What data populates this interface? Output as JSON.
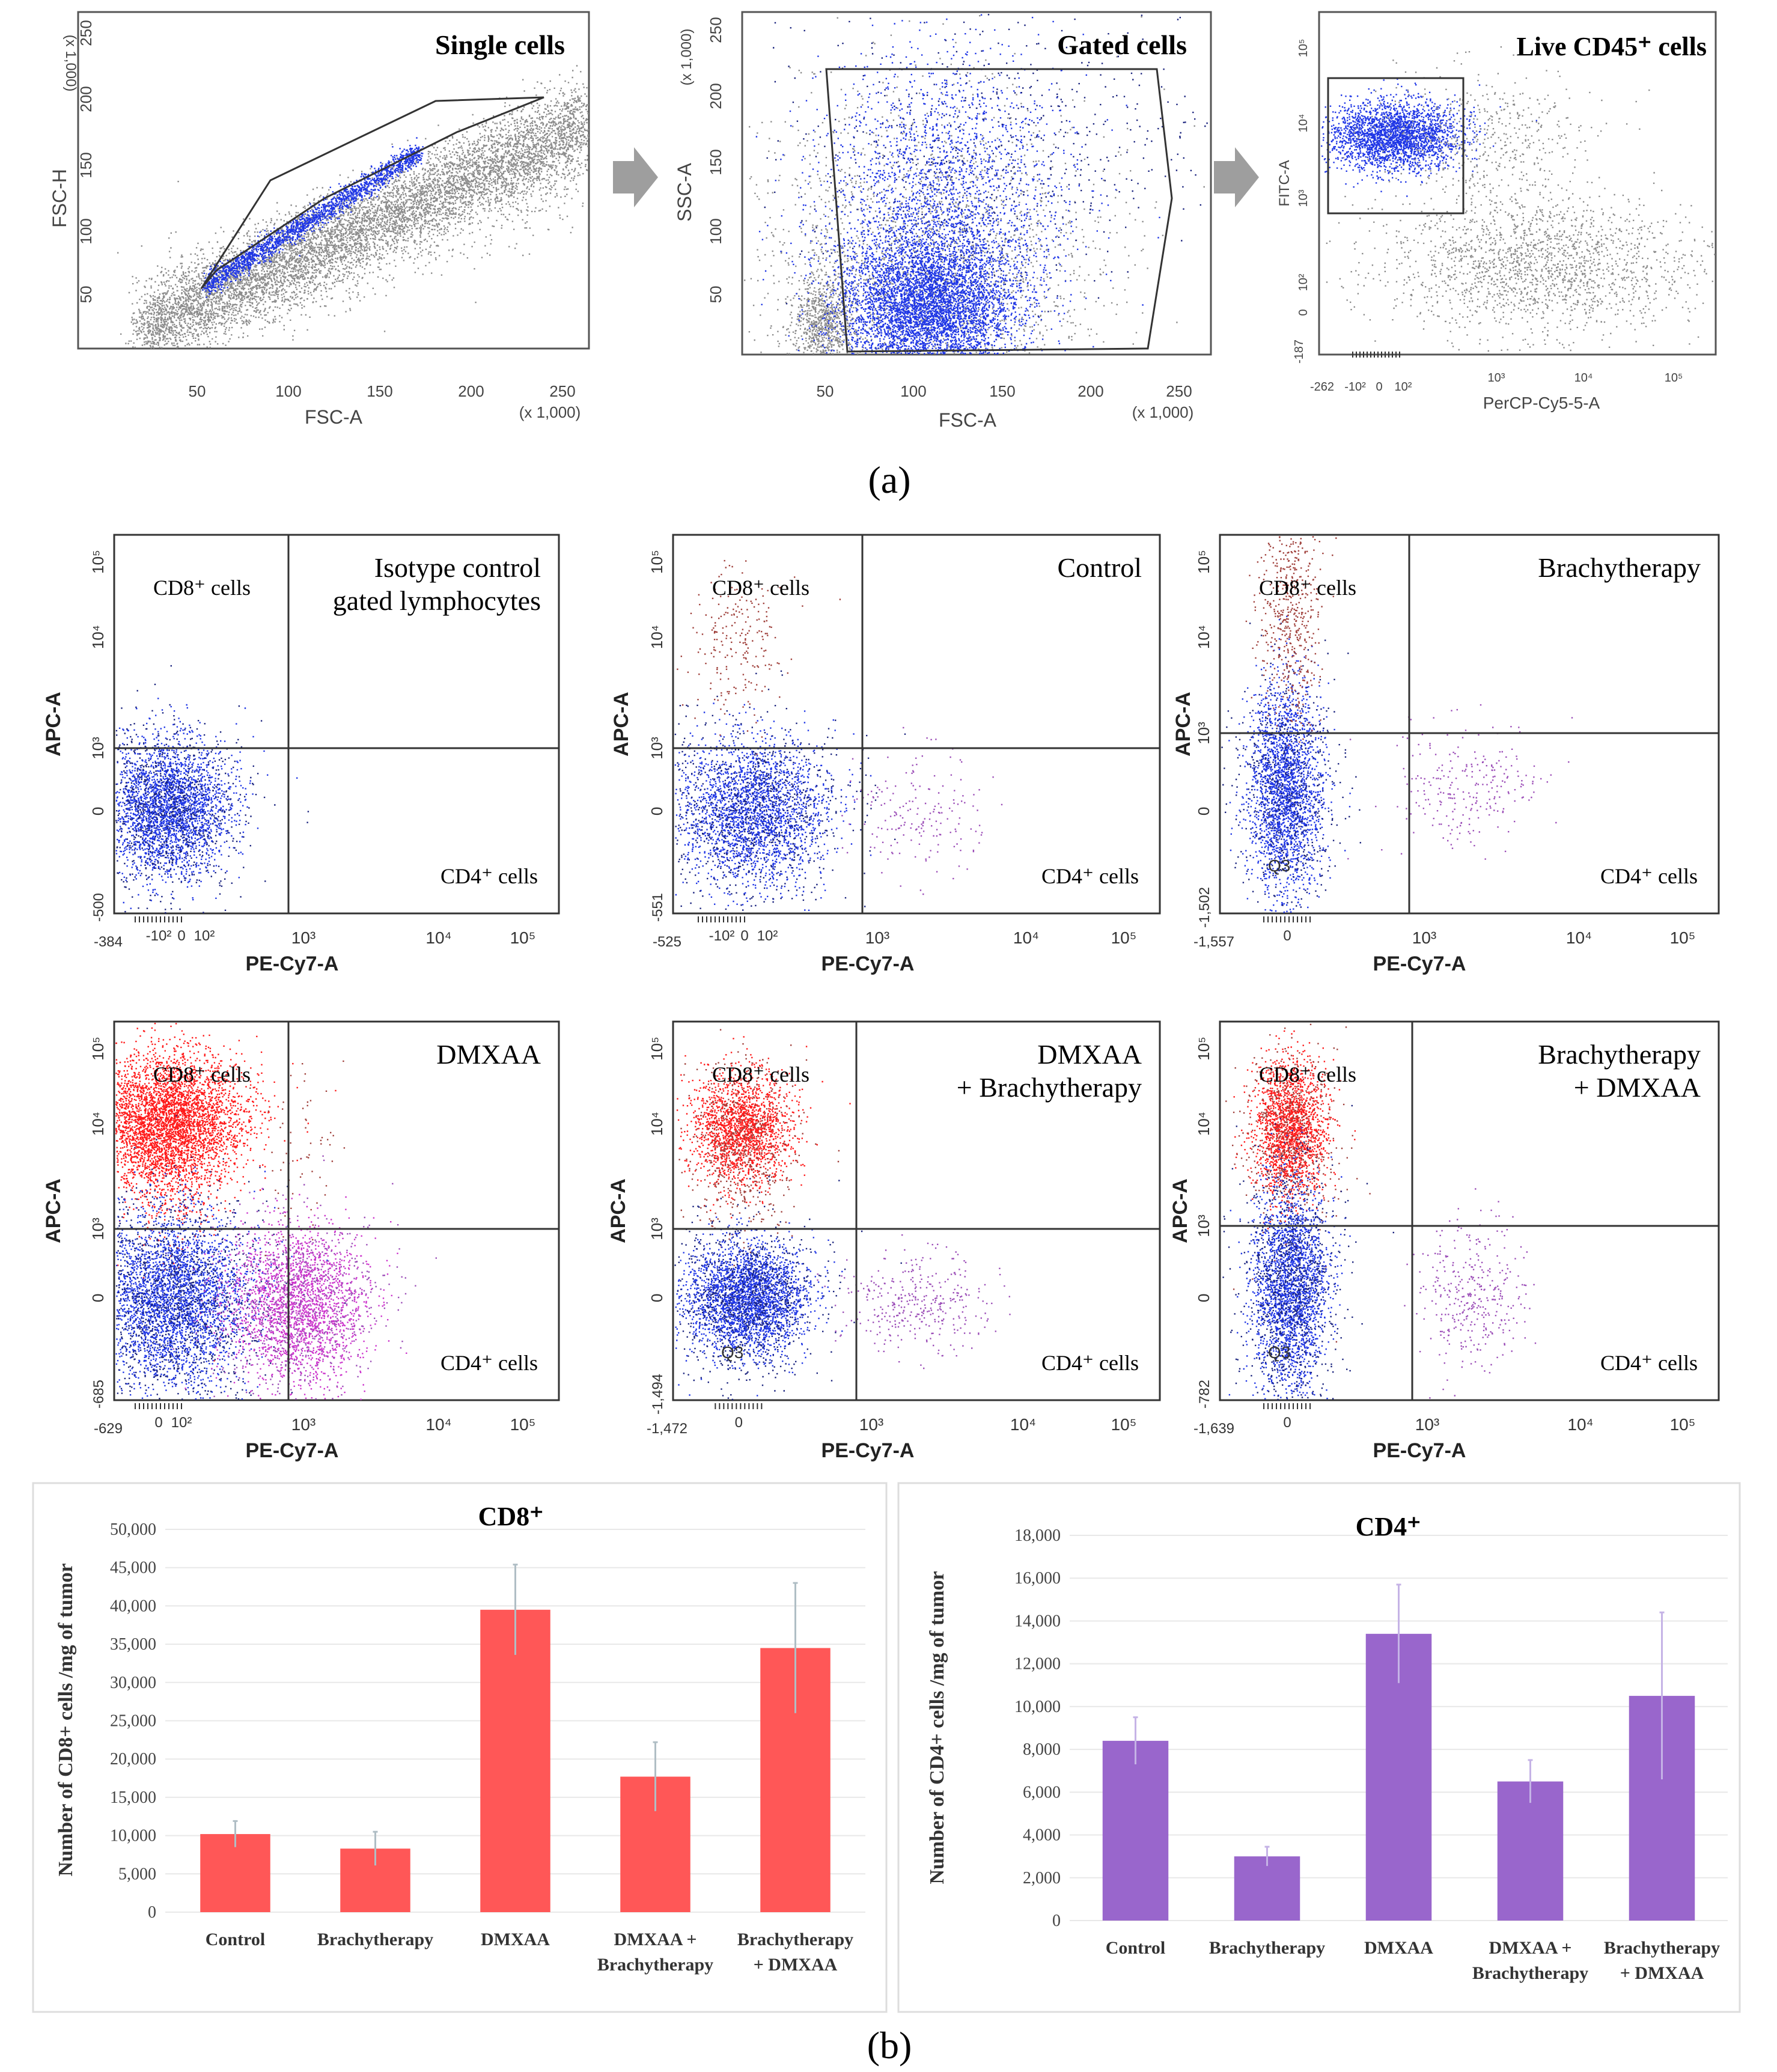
{
  "panel_labels": {
    "a": "(a)",
    "b": "(b)"
  },
  "colors": {
    "gray_dot": "#8c8c8c",
    "blue_dot": "#1f36e6",
    "navy_dot": "#1a237e",
    "red_dot": "#ff1a1a",
    "darkred_dot": "#a0413c",
    "magenta_dot": "#cc33cc",
    "purple_dot": "#9c4fb8",
    "cd8_bar": "#ff5757",
    "cd4_bar": "#9966cc",
    "arrow": "#9e9e9e"
  },
  "gating": {
    "single": {
      "title": "Single cells",
      "ylabel": "FSC-H",
      "xlabel": "FSC-A",
      "yunit": "(x 1,000)",
      "xunit": "(x 1,000)",
      "yticks": [
        "50",
        "100",
        "150",
        "200",
        "250"
      ],
      "xticks": [
        "50",
        "100",
        "150",
        "200",
        "250"
      ]
    },
    "gated": {
      "title": "Gated cells",
      "ylabel": "SSC-A",
      "xlabel": "FSC-A",
      "yunit": "(x 1,000)",
      "xunit": "(x 1,000)",
      "yticks": [
        "50",
        "100",
        "150",
        "200",
        "250"
      ],
      "xticks": [
        "50",
        "100",
        "150",
        "200",
        "250"
      ]
    },
    "live": {
      "title": "Live CD45⁺ cells",
      "ylabel": "FITC-A",
      "xlabel": "PerCP-Cy5-5-A",
      "yticks": [
        "-187",
        "0",
        "10²",
        "10³",
        "10⁴",
        "10⁵"
      ],
      "xticks": [
        "-262",
        "-10²",
        "0",
        "10²",
        "10³",
        "10⁴",
        "10⁵"
      ]
    }
  },
  "quadrants": [
    {
      "title_lines": [
        "Isotype control",
        "gated lymphocytes"
      ],
      "cd8": "CD8⁺ cells",
      "cd4": "CD4⁺ cells",
      "q3": "",
      "xmin": "-384",
      "ymin": "-500",
      "xlow": [
        "-10²",
        "0",
        "10²"
      ],
      "xticks": [
        "10³",
        "10⁴",
        "10⁵"
      ],
      "yticks": [
        "0",
        "10³",
        "10⁴",
        "10⁵"
      ],
      "xlabel": "PE-Cy7-A",
      "ylabel": "APC-A"
    },
    {
      "title_lines": [
        "Control"
      ],
      "cd8": "CD8⁺ cells",
      "cd4": "CD4⁺ cells",
      "q3": "",
      "xmin": "-525",
      "ymin": "-551",
      "xlow": [
        "-10²",
        "0",
        "10²"
      ],
      "xticks": [
        "10³",
        "10⁴",
        "10⁵"
      ],
      "yticks": [
        "0",
        "10³",
        "10⁴",
        "10⁵"
      ],
      "xlabel": "PE-Cy7-A",
      "ylabel": "APC-A"
    },
    {
      "title_lines": [
        "Brachytherapy"
      ],
      "cd8": "CD8⁺ cells",
      "cd4": "CD4⁺ cells",
      "q3": "Q3",
      "xmin": "-1,557",
      "ymin": "-1,502",
      "xlow": [
        "0"
      ],
      "xticks": [
        "10³",
        "10⁴",
        "10⁵"
      ],
      "yticks": [
        "0",
        "10³",
        "10⁴",
        "10⁵"
      ],
      "xlabel": "PE-Cy7-A",
      "ylabel": "APC-A"
    },
    {
      "title_lines": [
        "DMXAA"
      ],
      "cd8": "CD8⁺ cells",
      "cd4": "CD4⁺ cells",
      "q3": "",
      "xmin": "-629",
      "ymin": "-685",
      "xlow": [
        "0",
        "10²"
      ],
      "xticks": [
        "10³",
        "10⁴",
        "10⁵"
      ],
      "yticks": [
        "0",
        "10³",
        "10⁴",
        "10⁵"
      ],
      "xlabel": "PE-Cy7-A",
      "ylabel": "APC-A"
    },
    {
      "title_lines": [
        "DMXAA",
        "+ Brachytherapy"
      ],
      "cd8": "CD8⁺ cells",
      "cd4": "CD4⁺ cells",
      "q3": "Q3",
      "xmin": "-1,472",
      "ymin": "-1,494",
      "xlow": [
        "0"
      ],
      "xticks": [
        "10³",
        "10⁴",
        "10⁵"
      ],
      "yticks": [
        "0",
        "10³",
        "10⁴",
        "10⁵"
      ],
      "xlabel": "PE-Cy7-A",
      "ylabel": "APC-A"
    },
    {
      "title_lines": [
        "Brachytherapy",
        "+ DMXAA"
      ],
      "cd8": "CD8⁺ cells",
      "cd4": "CD4⁺ cells",
      "q3": "Q3",
      "xmin": "-1,639",
      "ymin": "-782",
      "xlow": [
        "0"
      ],
      "xticks": [
        "10³",
        "10⁴",
        "10⁵"
      ],
      "yticks": [
        "0",
        "10³",
        "10⁴",
        "10⁵"
      ],
      "xlabel": "PE-Cy7-A",
      "ylabel": "APC-A"
    }
  ],
  "chart_data": [
    {
      "type": "bar",
      "title": "CD8⁺",
      "ylabel": "Number of CD8+ cells /mg of tumor",
      "xlabel": "",
      "categories": [
        "Control",
        "Brachytherapy",
        "DMXAA",
        "DMXAA + Brachytherapy",
        "Brachytherapy + DMXAA"
      ],
      "category_lines": [
        [
          "Control"
        ],
        [
          "Brachytherapy"
        ],
        [
          "DMXAA"
        ],
        [
          "DMXAA +",
          "Brachytherapy"
        ],
        [
          "Brachytherapy",
          "+ DMXAA"
        ]
      ],
      "values": [
        10200,
        8300,
        39500,
        17700,
        34500
      ],
      "errors": [
        1700,
        2200,
        5900,
        4500,
        8500
      ],
      "ylim": [
        0,
        50000
      ],
      "yticks": [
        0,
        5000,
        10000,
        15000,
        20000,
        25000,
        30000,
        35000,
        40000,
        45000,
        50000
      ],
      "ytick_labels": [
        "0",
        "5,000",
        "10,000",
        "15,000",
        "20,000",
        "25,000",
        "30,000",
        "35,000",
        "40,000",
        "45,000",
        "50,000"
      ],
      "grid": true
    },
    {
      "type": "bar",
      "title": "CD4⁺",
      "ylabel": "Number of CD4+ cells /mg of tumor",
      "xlabel": "",
      "categories": [
        "Control",
        "Brachytherapy",
        "DMXAA",
        "DMXAA + Brachytherapy",
        "Brachytherapy + DMXAA"
      ],
      "category_lines": [
        [
          "Control"
        ],
        [
          "Brachytherapy"
        ],
        [
          "DMXAA"
        ],
        [
          "DMXAA +",
          "Brachytherapy"
        ],
        [
          "Brachytherapy",
          "+ DMXAA"
        ]
      ],
      "values": [
        8400,
        3000,
        13400,
        6500,
        10500
      ],
      "errors": [
        1100,
        450,
        2300,
        1000,
        3900
      ],
      "ylim": [
        0,
        18000
      ],
      "yticks": [
        0,
        2000,
        4000,
        6000,
        8000,
        10000,
        12000,
        14000,
        16000,
        18000
      ],
      "ytick_labels": [
        "0",
        "2,000",
        "4,000",
        "6,000",
        "8,000",
        "10,000",
        "12,000",
        "14,000",
        "16,000",
        "18,000"
      ],
      "grid": true
    }
  ]
}
